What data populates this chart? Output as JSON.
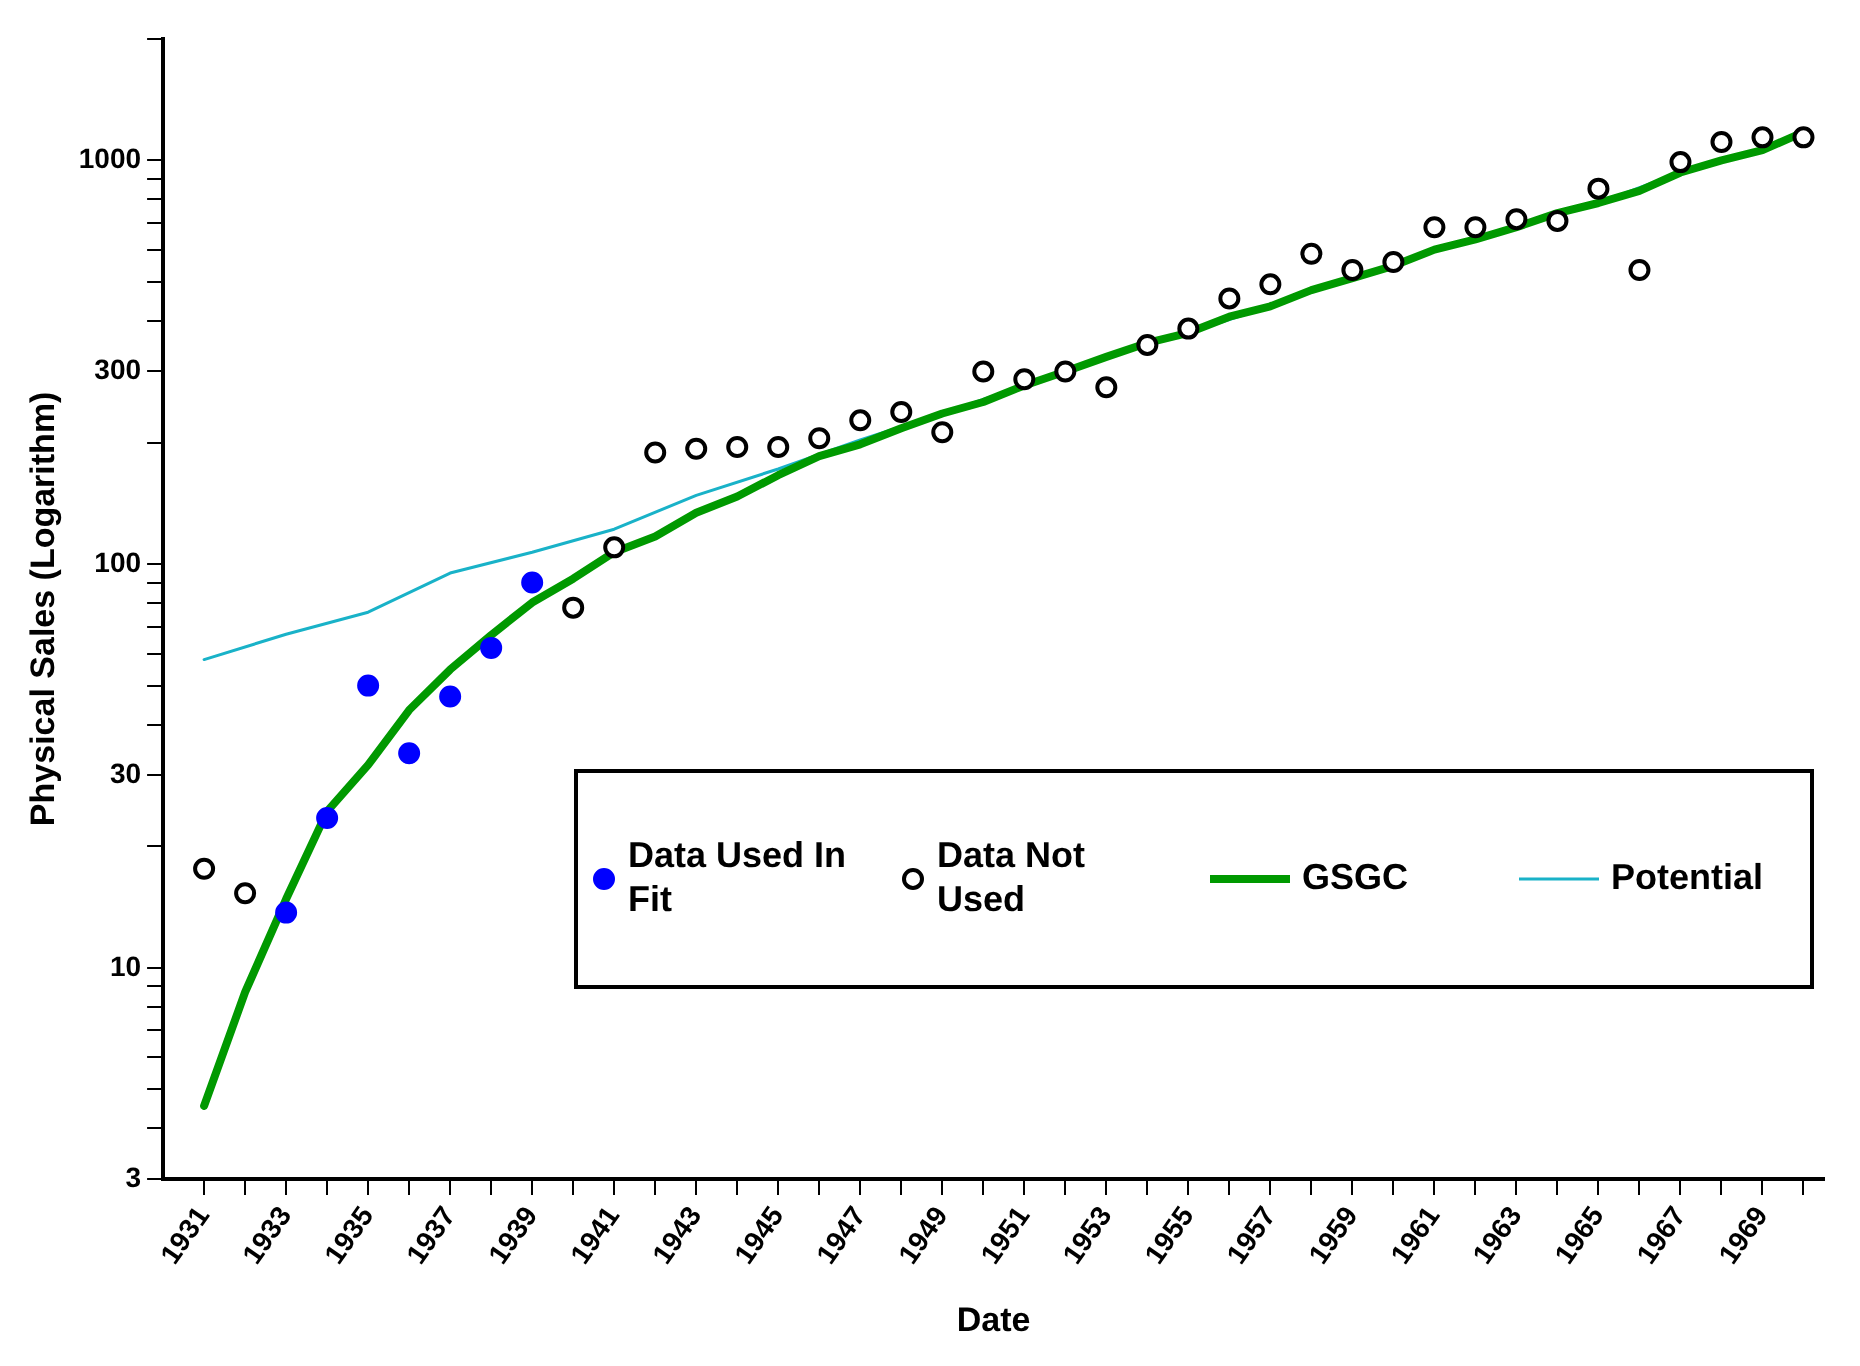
{
  "chart_data": {
    "type": "line",
    "xlabel": "Date",
    "ylabel": "Physical Sales (Logarithm)",
    "log": "y",
    "grid": false,
    "legend": "bottom right",
    "xlim": [
      1930,
      1970.5
    ],
    "xticks": [
      1931,
      {
        "value": 1932,
        "label": null
      },
      1933,
      {
        "value": 1934,
        "label": null
      },
      1935,
      {
        "value": 1936,
        "label": null
      },
      1937,
      {
        "value": 1938,
        "label": null
      },
      1939,
      {
        "value": 1940,
        "label": null
      },
      1941,
      {
        "value": 1942,
        "label": null
      },
      1943,
      {
        "value": 1944,
        "label": null
      },
      1945,
      {
        "value": 1946,
        "label": null
      },
      1947,
      {
        "value": 1948,
        "label": null
      },
      1949,
      {
        "value": 1950,
        "label": null
      },
      1951,
      {
        "value": 1952,
        "label": null
      },
      1953,
      {
        "value": 1954,
        "label": null
      },
      1955,
      {
        "value": 1956,
        "label": null
      },
      1957,
      {
        "value": 1958,
        "label": null
      },
      1959,
      {
        "value": 1960,
        "label": null
      },
      1961,
      {
        "value": 1962,
        "label": null
      },
      1963,
      {
        "value": 1964,
        "label": null
      },
      1965,
      {
        "value": 1966,
        "label": null
      },
      1967,
      {
        "value": 1968,
        "label": null
      },
      1969,
      {
        "value": 1970,
        "label": null
      }
    ],
    "ylim": [
      3,
      2000
    ],
    "yticks": [
      3,
      {
        "value": 4,
        "label": null
      },
      {
        "value": 5,
        "label": null
      },
      {
        "value": 6,
        "label": null
      },
      {
        "value": 7,
        "label": null
      },
      {
        "value": 8,
        "label": null
      },
      {
        "value": 9,
        "label": null
      },
      10,
      {
        "value": 20,
        "label": null
      },
      30,
      {
        "value": 40,
        "label": null
      },
      {
        "value": 50,
        "label": null
      },
      {
        "value": 60,
        "label": null
      },
      {
        "value": 70,
        "label": null
      },
      {
        "value": 80,
        "label": null
      },
      {
        "value": 90,
        "label": null
      },
      100,
      {
        "value": 200,
        "label": null
      },
      300,
      {
        "value": 400,
        "label": null
      },
      {
        "value": 500,
        "label": null
      },
      {
        "value": 600,
        "label": null
      },
      {
        "value": 700,
        "label": null
      },
      {
        "value": 800,
        "label": null
      },
      {
        "value": 900,
        "label": null
      },
      1000,
      {
        "value": 2000,
        "label": null
      }
    ],
    "series": [
      {
        "name": "Data Used In Fit",
        "type": "scatter",
        "marker": "circle",
        "color": "#0000ff",
        "x": [
          1933,
          1934,
          1935,
          1936,
          1937,
          1938,
          1939
        ],
        "values": [
          13.7,
          23.5,
          50,
          34,
          47,
          62,
          90
        ]
      },
      {
        "name": "Data Not Used",
        "type": "scatter",
        "marker": "circle",
        "color": "#000000",
        "x": [
          1931,
          1932,
          1940,
          1941,
          1942,
          1943,
          1944,
          1945,
          1946,
          1947,
          1948,
          1949,
          1950,
          1951,
          1952,
          1953,
          1954,
          1955,
          1956,
          1957,
          1958,
          1959,
          1960,
          1961,
          1962,
          1963,
          1964,
          1965,
          1966,
          1967,
          1968,
          1969,
          1970
        ],
        "values": [
          17.6,
          15.3,
          78,
          110,
          189,
          193,
          195,
          195,
          205,
          227,
          238,
          212,
          300,
          287,
          300,
          274,
          349,
          383,
          455,
          493,
          587,
          535,
          560,
          683,
          683,
          715,
          708,
          851,
          535,
          990,
          1110,
          1140,
          1140
        ]
      },
      {
        "name": "GSGC",
        "marker": "none",
        "color": "#009900",
        "x": [
          1931,
          1932,
          1933,
          1934,
          1935,
          1936,
          1937,
          1938,
          1939,
          1940,
          1941,
          1942,
          1943,
          1944,
          1945,
          1946,
          1947,
          1948,
          1949,
          1950,
          1951,
          1952,
          1953,
          1954,
          1955,
          1956,
          1957,
          1958,
          1959,
          1960,
          1961,
          1962,
          1963,
          1964,
          1965,
          1966,
          1967,
          1968,
          1969,
          1970
        ],
        "values": [
          4.55,
          8.7,
          14.8,
          24.4,
          31.8,
          43.5,
          54.8,
          66.7,
          80.3,
          92,
          107,
          117,
          134,
          147,
          166,
          185,
          198,
          217,
          236,
          252,
          277,
          300,
          326,
          353,
          374,
          410,
          435,
          477,
          511,
          548,
          601,
          637,
          683,
          740,
          784,
          840,
          933,
          1000,
          1060,
          1175
        ]
      },
      {
        "name": "Potential",
        "marker": "none",
        "color": "#19b2c8",
        "x": [
          1931,
          1933,
          1935,
          1937,
          1939,
          1941,
          1943,
          1945,
          1947,
          1949,
          1951,
          1953,
          1955,
          1957,
          1959,
          1961,
          1963,
          1965,
          1967,
          1969,
          1970
        ],
        "values": [
          58,
          67,
          76,
          95,
          107,
          122,
          148,
          172,
          203,
          236,
          277,
          326,
          374,
          435,
          511,
          601,
          683,
          784,
          933,
          1060,
          1175
        ]
      }
    ]
  }
}
